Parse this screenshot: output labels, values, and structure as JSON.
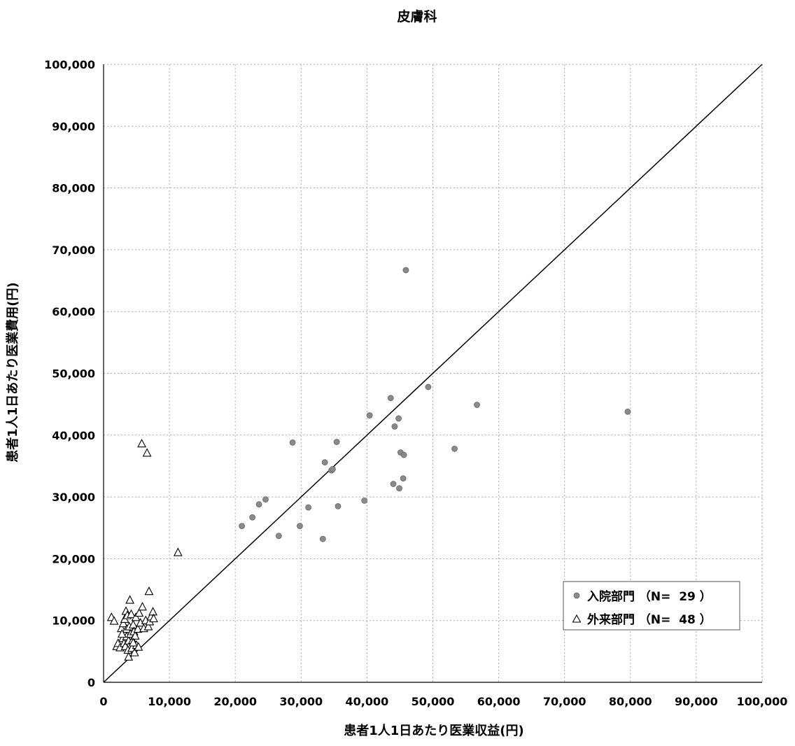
{
  "chart_data": {
    "type": "scatter",
    "title": "皮膚科",
    "xlabel": "患者1人1日あたり医業収益(円)",
    "ylabel": "患者1人1日あたり医業費用(円)",
    "xlim": [
      0,
      100000
    ],
    "ylim": [
      0,
      100000
    ],
    "xticks": [
      0,
      10000,
      20000,
      30000,
      40000,
      50000,
      60000,
      70000,
      80000,
      90000,
      100000
    ],
    "yticks": [
      0,
      10000,
      20000,
      30000,
      40000,
      50000,
      60000,
      70000,
      80000,
      90000,
      100000
    ],
    "xtick_labels": [
      "0",
      "10,000",
      "20,000",
      "30,000",
      "40,000",
      "50,000",
      "60,000",
      "70,000",
      "80,000",
      "90,000",
      "100,000"
    ],
    "ytick_labels": [
      "0",
      "10,000",
      "20,000",
      "30,000",
      "40,000",
      "50,000",
      "60,000",
      "70,000",
      "80,000",
      "90,000",
      "100,000"
    ],
    "grid": true,
    "reference_line": [
      [
        0,
        0
      ],
      [
        100000,
        100000
      ]
    ],
    "legend_position": "bottom-right",
    "colors": {
      "inpatient": "#8a8a8a",
      "outpatient": "#000000",
      "line": "#000000",
      "grid": "#aaaaaa"
    },
    "series": [
      {
        "name": "入院部門",
        "legend_label": "入院部門 （N=  29 ）",
        "marker": "circle",
        "points": [
          [
            21000,
            25300
          ],
          [
            22600,
            26700
          ],
          [
            23600,
            28800
          ],
          [
            24600,
            29600
          ],
          [
            26600,
            23700
          ],
          [
            28700,
            38800
          ],
          [
            29800,
            25300
          ],
          [
            31100,
            28300
          ],
          [
            33300,
            23200
          ],
          [
            33600,
            35600
          ],
          [
            34600,
            34300
          ],
          [
            35400,
            38900
          ],
          [
            35600,
            28500
          ],
          [
            39600,
            29400
          ],
          [
            40400,
            43200
          ],
          [
            43600,
            46000
          ],
          [
            44000,
            32100
          ],
          [
            44200,
            41400
          ],
          [
            44800,
            42700
          ],
          [
            44900,
            31400
          ],
          [
            45100,
            37200
          ],
          [
            45500,
            33000
          ],
          [
            45600,
            36800
          ],
          [
            45900,
            66700
          ],
          [
            49300,
            47800
          ],
          [
            53300,
            37800
          ],
          [
            56700,
            44900
          ],
          [
            79600,
            43800
          ],
          [
            34800,
            34500
          ]
        ]
      },
      {
        "name": "外来部門",
        "legend_label": "外来部門 （N=  48 ）",
        "marker": "triangle",
        "points": [
          [
            1200,
            10500
          ],
          [
            1600,
            9900
          ],
          [
            2000,
            5800
          ],
          [
            2200,
            6300
          ],
          [
            2500,
            5600
          ],
          [
            2700,
            8700
          ],
          [
            2900,
            7100
          ],
          [
            3000,
            9500
          ],
          [
            3100,
            6300
          ],
          [
            3200,
            10200
          ],
          [
            3300,
            5800
          ],
          [
            3400,
            11500
          ],
          [
            3500,
            7400
          ],
          [
            3500,
            8600
          ],
          [
            3600,
            10800
          ],
          [
            3700,
            5200
          ],
          [
            3800,
            6700
          ],
          [
            3800,
            4100
          ],
          [
            3900,
            9000
          ],
          [
            4000,
            13300
          ],
          [
            4100,
            7800
          ],
          [
            4200,
            11000
          ],
          [
            4300,
            5500
          ],
          [
            4400,
            6800
          ],
          [
            4500,
            9300
          ],
          [
            4600,
            8200
          ],
          [
            4700,
            4800
          ],
          [
            4800,
            7500
          ],
          [
            4900,
            10500
          ],
          [
            5000,
            6000
          ],
          [
            5200,
            8600
          ],
          [
            5300,
            5700
          ],
          [
            5400,
            11200
          ],
          [
            5600,
            9600
          ],
          [
            5800,
            38600
          ],
          [
            5900,
            12200
          ],
          [
            6100,
            8700
          ],
          [
            6400,
            10000
          ],
          [
            6600,
            37100
          ],
          [
            6800,
            9000
          ],
          [
            6900,
            14700
          ],
          [
            7000,
            9800
          ],
          [
            7200,
            10600
          ],
          [
            7500,
            11400
          ],
          [
            7600,
            10300
          ],
          [
            11300,
            21000
          ],
          [
            2800,
            7800
          ],
          [
            4500,
            6400
          ]
        ]
      }
    ]
  }
}
